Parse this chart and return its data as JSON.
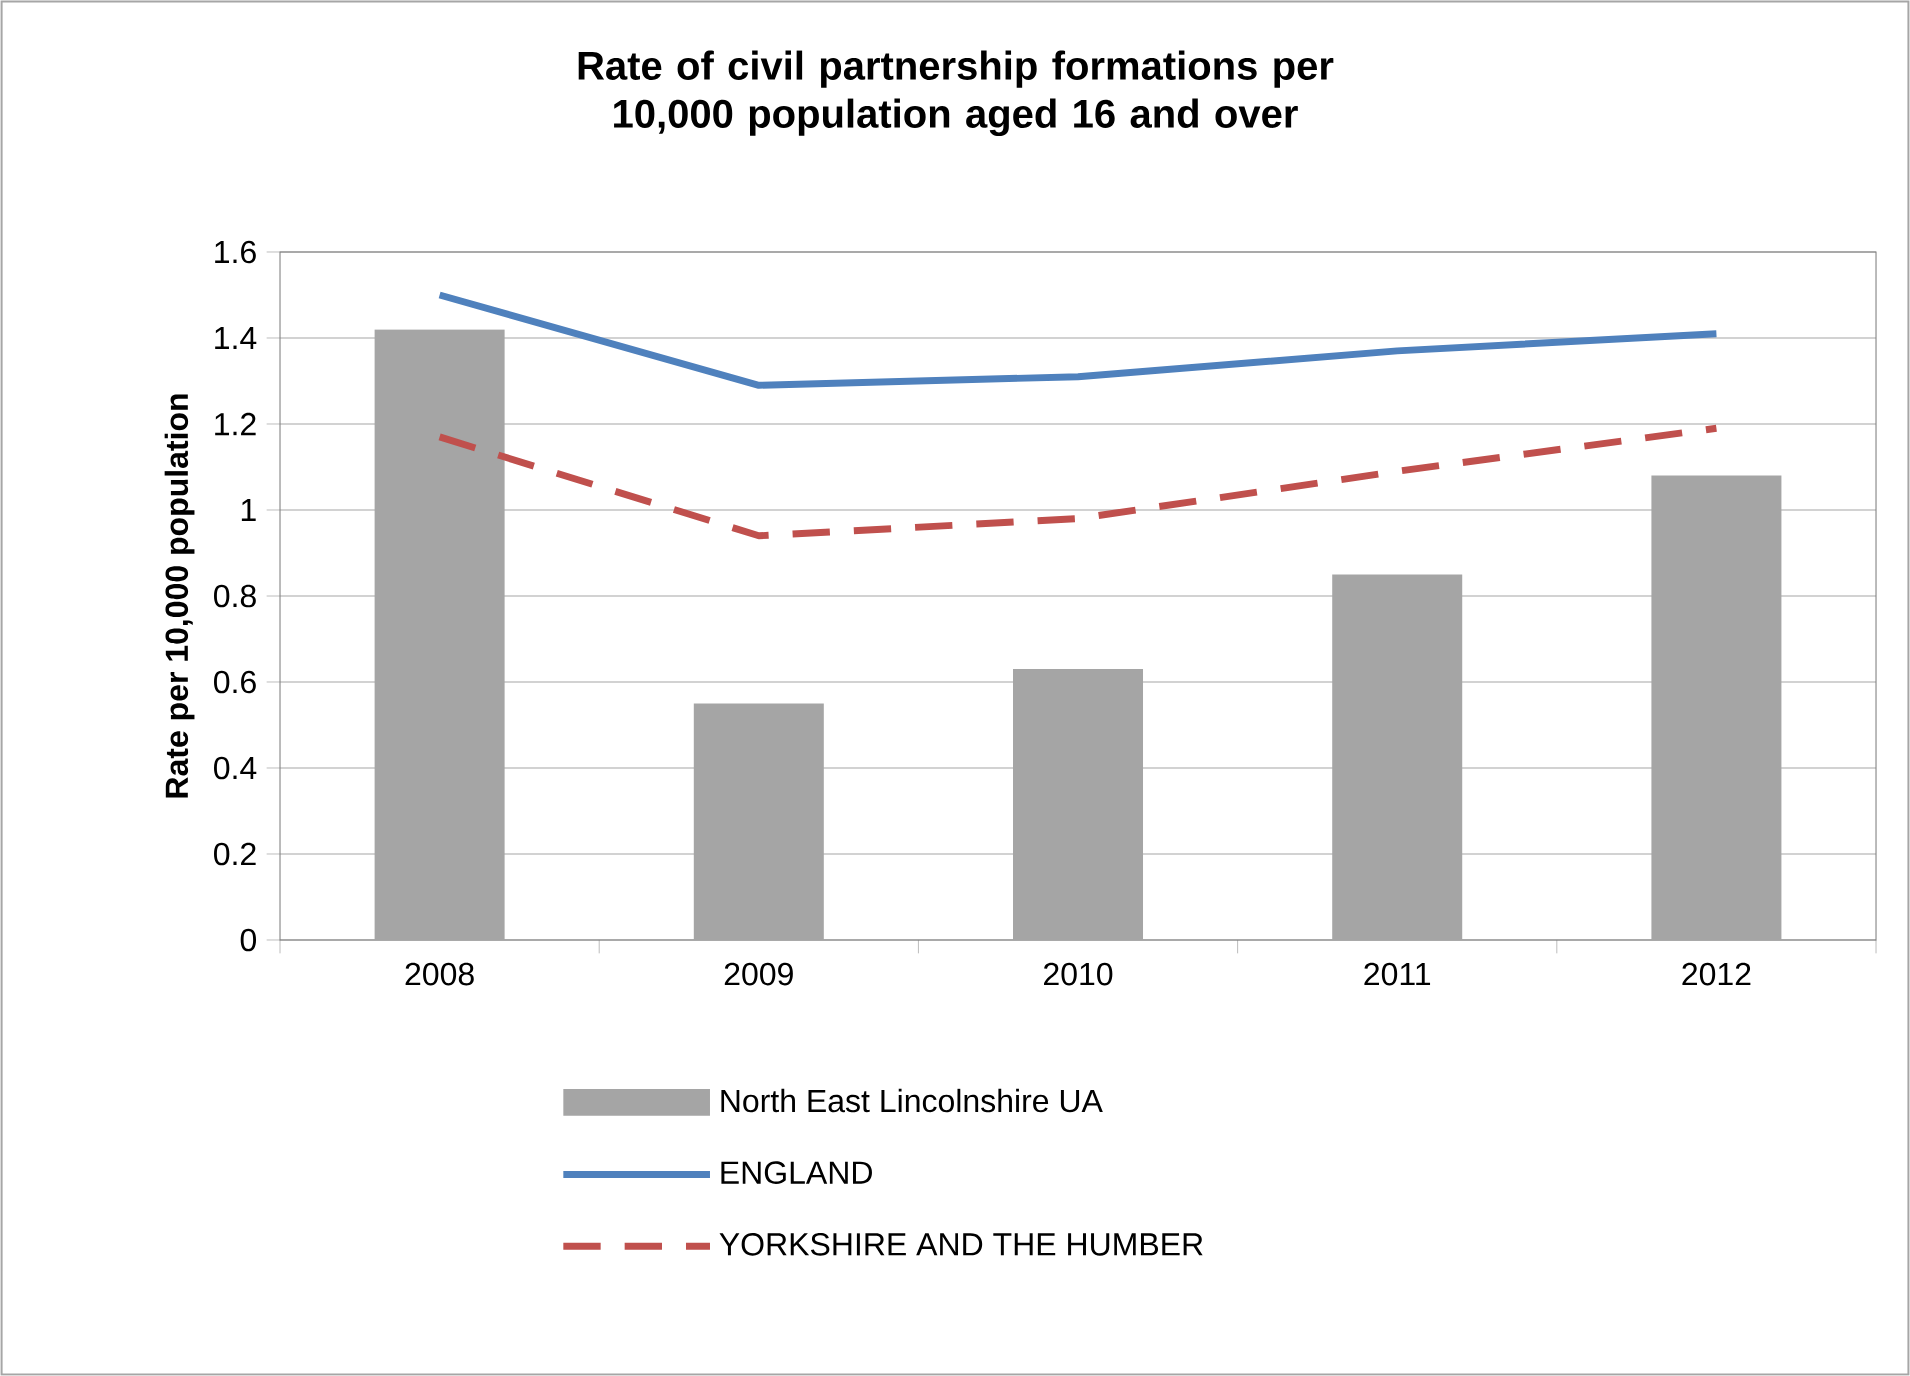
{
  "chart_data": {
    "type": "bar",
    "title": "Rate of civil partnership formations per 10,000 population aged 16 and over",
    "ylabel": "Rate per 10,000 population",
    "categories": [
      "2008",
      "2009",
      "2010",
      "2011",
      "2012"
    ],
    "series": [
      {
        "name": "North East Lincolnshire UA",
        "color": "#a5a5a5",
        "values": [
          1.42,
          0.55,
          0.63,
          0.85,
          1.08
        ]
      },
      {
        "name": "ENGLAND",
        "type": "line",
        "color": "#4f81bd",
        "line_style": "solid",
        "values": [
          1.5,
          1.29,
          1.31,
          1.37,
          1.41
        ]
      },
      {
        "name": "YORKSHIRE AND THE HUMBER",
        "type": "line",
        "color": "#c0504d",
        "line_style": "dashed",
        "values": [
          1.17,
          0.94,
          0.98,
          1.09,
          1.19
        ]
      }
    ],
    "ylim": [
      0,
      1.6
    ],
    "yticks": [
      0,
      0.2,
      0.4,
      0.6,
      0.8,
      1,
      1.2,
      1.4,
      1.6
    ],
    "grid": "y",
    "legend": "bottom",
    "marker": "none"
  }
}
